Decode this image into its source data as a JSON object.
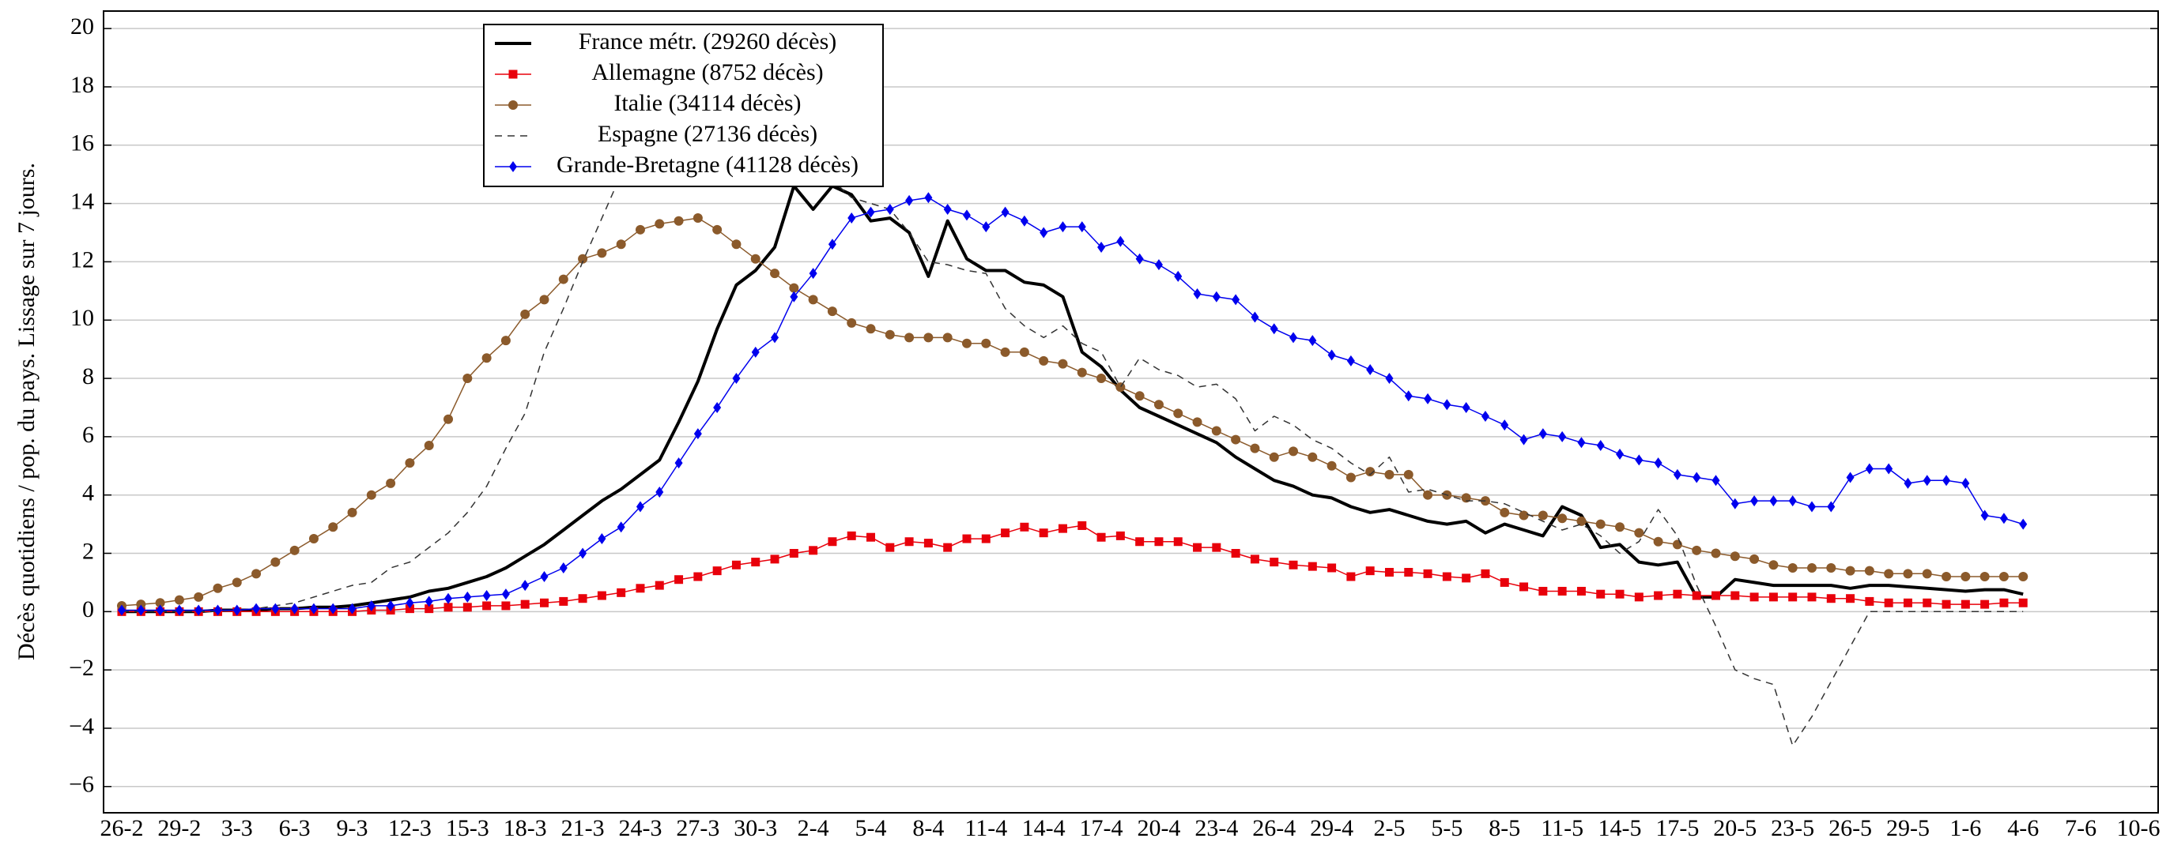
{
  "chart_data": {
    "type": "line",
    "y_label": "Décès quotidiens / pop. du pays. Lissage sur 7 jours.",
    "categories": [
      "26-2",
      null,
      null,
      "29-2",
      null,
      null,
      "3-3",
      null,
      null,
      "6-3",
      null,
      null,
      "9-3",
      null,
      null,
      "12-3",
      null,
      null,
      "15-3",
      null,
      null,
      "18-3",
      null,
      null,
      "21-3",
      null,
      null,
      "24-3",
      null,
      null,
      "27-3",
      null,
      null,
      "30-3",
      null,
      null,
      "2-4",
      null,
      null,
      "5-4",
      null,
      null,
      "8-4",
      null,
      null,
      "11-4",
      null,
      null,
      "14-4",
      null,
      null,
      "17-4",
      null,
      null,
      "20-4",
      null,
      null,
      "23-4",
      null,
      null,
      "26-4",
      null,
      null,
      "29-4",
      null,
      null,
      "2-5",
      null,
      null,
      "5-5",
      null,
      null,
      "8-5",
      null,
      null,
      "11-5",
      null,
      null,
      "14-5",
      null,
      null,
      "17-5",
      null,
      null,
      "20-5",
      null,
      null,
      "23-5",
      null,
      null,
      "26-5",
      null,
      null,
      "29-5",
      null,
      null,
      "1-6",
      null,
      null,
      "4-6",
      null,
      null,
      "7-6",
      null,
      null,
      "10-6"
    ],
    "ylim": [
      -6.9,
      20.6
    ],
    "yticks": [
      {
        "value": -6,
        "label": "−6"
      },
      {
        "value": -4,
        "label": "−4"
      },
      {
        "value": -2,
        "label": "−2"
      },
      0,
      2,
      4,
      6,
      8,
      10,
      12,
      14,
      16,
      18,
      20
    ],
    "grid": true,
    "legend": "upper left",
    "series": [
      {
        "name": "France métr. (29260 décès)",
        "color": "#000000",
        "marker": "none",
        "dashed": false,
        "width": 4,
        "values": [
          0,
          0,
          0,
          0,
          0,
          0.05,
          0.05,
          0.05,
          0.1,
          0.1,
          0.15,
          0.15,
          0.2,
          0.3,
          0.4,
          0.5,
          0.7,
          0.8,
          1.0,
          1.2,
          1.5,
          1.9,
          2.3,
          2.8,
          3.3,
          3.8,
          4.2,
          4.7,
          5.2,
          6.5,
          7.9,
          9.7,
          11.2,
          11.7,
          12.5,
          14.6,
          13.8,
          14.6,
          14.3,
          13.4,
          13.5,
          13.0,
          11.5,
          13.4,
          12.1,
          11.7,
          11.7,
          11.3,
          11.2,
          10.8,
          8.9,
          8.4,
          7.6,
          7.0,
          6.7,
          6.4,
          6.1,
          5.8,
          5.3,
          4.9,
          4.5,
          4.3,
          4.0,
          3.9,
          3.6,
          3.4,
          3.5,
          3.3,
          3.1,
          3.0,
          3.1,
          2.7,
          3.0,
          2.8,
          2.6,
          3.6,
          3.3,
          2.2,
          2.3,
          1.7,
          1.6,
          1.7,
          0.5,
          0.5,
          1.1,
          1.0,
          0.9,
          0.9,
          0.9,
          0.9,
          0.8,
          0.9,
          0.9,
          0.85,
          0.8,
          0.75,
          0.7,
          0.75,
          0.75,
          0.6,
          null,
          null,
          null,
          null,
          null,
          null
        ]
      },
      {
        "name": "Allemagne (8752 décès)",
        "color": "#e8000b",
        "marker": "square",
        "dashed": false,
        "width": 1.5,
        "values": [
          0,
          0,
          0,
          0,
          0,
          0,
          0,
          0,
          0,
          0,
          0,
          0,
          0,
          0.05,
          0.05,
          0.1,
          0.1,
          0.15,
          0.15,
          0.2,
          0.2,
          0.25,
          0.3,
          0.35,
          0.45,
          0.55,
          0.65,
          0.8,
          0.9,
          1.1,
          1.2,
          1.4,
          1.6,
          1.7,
          1.8,
          2.0,
          2.1,
          2.4,
          2.6,
          2.55,
          2.2,
          2.4,
          2.35,
          2.2,
          2.5,
          2.5,
          2.7,
          2.9,
          2.7,
          2.85,
          2.95,
          2.55,
          2.6,
          2.4,
          2.4,
          2.4,
          2.2,
          2.2,
          2.0,
          1.8,
          1.7,
          1.6,
          1.55,
          1.5,
          1.2,
          1.4,
          1.35,
          1.35,
          1.3,
          1.2,
          1.15,
          1.3,
          1.0,
          0.85,
          0.7,
          0.7,
          0.7,
          0.6,
          0.6,
          0.5,
          0.55,
          0.6,
          0.55,
          0.55,
          0.55,
          0.5,
          0.5,
          0.5,
          0.5,
          0.45,
          0.45,
          0.35,
          0.3,
          0.3,
          0.3,
          0.25,
          0.25,
          0.25,
          0.3,
          0.3,
          null,
          null,
          null,
          null,
          null,
          null
        ]
      },
      {
        "name": "Italie (34114 décès)",
        "color": "#8b5a2b",
        "marker": "circle",
        "dashed": false,
        "width": 1.5,
        "values": [
          0.2,
          0.25,
          0.3,
          0.4,
          0.5,
          0.8,
          1.0,
          1.3,
          1.7,
          2.1,
          2.5,
          2.9,
          3.4,
          4.0,
          4.4,
          5.1,
          5.7,
          6.6,
          8.0,
          8.7,
          9.3,
          10.2,
          10.7,
          11.4,
          12.1,
          12.3,
          12.6,
          13.1,
          13.3,
          13.4,
          13.5,
          13.1,
          12.6,
          12.1,
          11.6,
          11.1,
          10.7,
          10.3,
          9.9,
          9.7,
          9.5,
          9.4,
          9.4,
          9.4,
          9.2,
          9.2,
          8.9,
          8.9,
          8.6,
          8.5,
          8.2,
          8.0,
          7.7,
          7.4,
          7.1,
          6.8,
          6.5,
          6.2,
          5.9,
          5.6,
          5.3,
          5.5,
          5.3,
          5.0,
          4.6,
          4.8,
          4.7,
          4.7,
          4.0,
          4.0,
          3.9,
          3.8,
          3.4,
          3.3,
          3.3,
          3.2,
          3.1,
          3.0,
          2.9,
          2.7,
          2.4,
          2.3,
          2.1,
          2.0,
          1.9,
          1.8,
          1.6,
          1.5,
          1.5,
          1.5,
          1.4,
          1.4,
          1.3,
          1.3,
          1.3,
          1.2,
          1.2,
          1.2,
          1.2,
          1.2,
          null,
          null,
          null,
          null,
          null,
          null
        ]
      },
      {
        "name": "Espagne (27136 décès)",
        "color": "#333333",
        "marker": "none",
        "dashed": true,
        "width": 1.5,
        "values": [
          0,
          0,
          0,
          0,
          0,
          0,
          0.05,
          0.1,
          0.2,
          0.3,
          0.5,
          0.7,
          0.9,
          1.0,
          1.5,
          1.7,
          2.2,
          2.7,
          3.4,
          4.3,
          5.6,
          6.8,
          8.9,
          10.4,
          12.0,
          13.5,
          15.0,
          16.5,
          17.5,
          18.2,
          18.5,
          18.3,
          17.8,
          17.0,
          16.5,
          16.0,
          15.3,
          14.8,
          14.2,
          14.0,
          13.8,
          13.0,
          12.0,
          11.9,
          11.7,
          11.6,
          10.4,
          9.8,
          9.4,
          9.8,
          9.2,
          8.9,
          7.7,
          8.7,
          8.3,
          8.1,
          7.7,
          7.8,
          7.3,
          6.2,
          6.7,
          6.4,
          5.9,
          5.6,
          5.1,
          4.7,
          5.3,
          4.1,
          4.2,
          4.0,
          3.8,
          3.8,
          3.7,
          3.4,
          3.1,
          2.8,
          3.0,
          2.6,
          2.0,
          2.4,
          3.5,
          2.6,
          0.9,
          -0.5,
          -2.0,
          -2.3,
          -2.5,
          -4.6,
          -3.6,
          -2.4,
          -1.2,
          0,
          0,
          0,
          0,
          0,
          0,
          0,
          0,
          0,
          null,
          null,
          null,
          null,
          null,
          null
        ]
      },
      {
        "name": "Grande-Bretagne (41128 décès)",
        "color": "#0000ee",
        "marker": "diamond",
        "dashed": false,
        "width": 1.5,
        "values": [
          0.05,
          0.05,
          0.05,
          0.05,
          0.05,
          0.05,
          0.05,
          0.1,
          0.1,
          0.1,
          0.1,
          0.1,
          0.1,
          0.2,
          0.2,
          0.3,
          0.35,
          0.45,
          0.5,
          0.55,
          0.6,
          0.9,
          1.2,
          1.5,
          2.0,
          2.5,
          2.9,
          3.6,
          4.1,
          5.1,
          6.1,
          7.0,
          8.0,
          8.9,
          9.4,
          10.8,
          11.6,
          12.6,
          13.5,
          13.7,
          13.8,
          14.1,
          14.2,
          13.8,
          13.6,
          13.2,
          13.7,
          13.4,
          13.0,
          13.2,
          13.2,
          12.5,
          12.7,
          12.1,
          11.9,
          11.5,
          10.9,
          10.8,
          10.7,
          10.1,
          9.7,
          9.4,
          9.3,
          8.8,
          8.6,
          8.3,
          8.0,
          7.4,
          7.3,
          7.1,
          7.0,
          6.7,
          6.4,
          5.9,
          6.1,
          6.0,
          5.8,
          5.7,
          5.4,
          5.2,
          5.1,
          4.7,
          4.6,
          4.5,
          3.7,
          3.8,
          3.8,
          3.8,
          3.6,
          3.6,
          4.6,
          4.9,
          4.9,
          4.4,
          4.5,
          4.5,
          4.4,
          3.3,
          3.2,
          3.0,
          null,
          null,
          null,
          null,
          null,
          null
        ]
      }
    ]
  }
}
